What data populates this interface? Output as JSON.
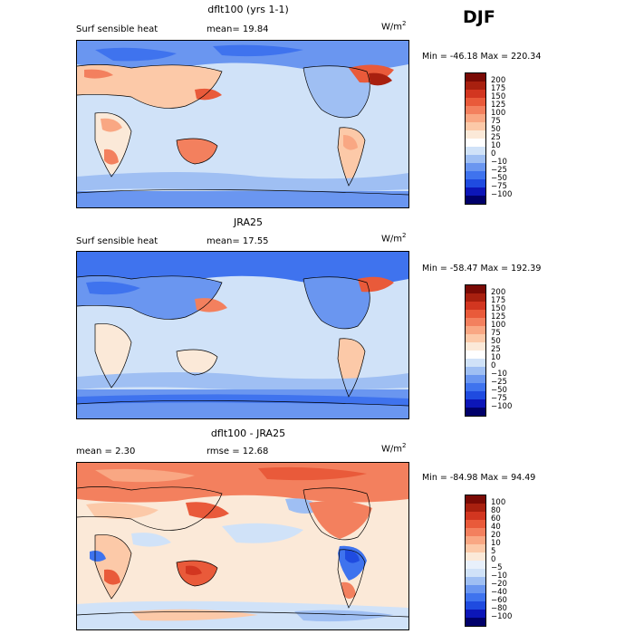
{
  "season": "DJF",
  "units_base": "W/m",
  "units_exp": "2",
  "colors": {
    "abs": [
      "#00006a",
      "#0c16b8",
      "#1f4be0",
      "#3f73ee",
      "#6a96f0",
      "#9fbff3",
      "#d0e2f8",
      "#fbe9d8",
      "#fcc9a8",
      "#f9a783",
      "#f3805e",
      "#e95a3a",
      "#d23620",
      "#a8200f",
      "#7a0a05"
    ],
    "diff": [
      "#00006a",
      "#0c16b8",
      "#1f4be0",
      "#3f73ee",
      "#6a96f0",
      "#9fbff3",
      "#d0e2f8",
      "#e8f0fb",
      "#fbe9d8",
      "#fcc9a8",
      "#f9a783",
      "#f3805e",
      "#e95a3a",
      "#d23620",
      "#a8200f",
      "#7a0a05"
    ]
  },
  "panels": [
    {
      "title": "dflt100 (yrs 1-1)",
      "label_left": "Surf sensible heat",
      "label_mid": "mean=  19.84",
      "minmax": "Min = -46.18  Max = 220.34",
      "colorbar_labels": [
        "200",
        "175",
        "150",
        "125",
        "100",
        "75",
        "50",
        "25",
        "10",
        "0",
        "−10",
        "−25",
        "−50",
        "−75",
        "−100"
      ]
    },
    {
      "title": "JRA25",
      "label_left": "Surf sensible heat",
      "label_mid": "mean=  17.55",
      "minmax": "Min = -58.47  Max = 192.39",
      "colorbar_labels": [
        "200",
        "175",
        "150",
        "125",
        "100",
        "75",
        "50",
        "25",
        "10",
        "0",
        "−10",
        "−25",
        "−50",
        "−75",
        "−100"
      ]
    },
    {
      "title": "dflt100 - JRA25",
      "label_left": "mean =    2.30",
      "label_mid": "rmse =   12.68",
      "minmax": "Min = -84.98  Max =  94.49",
      "colorbar_labels": [
        "100",
        "80",
        "60",
        "40",
        "20",
        "10",
        "5",
        "0",
        "−5",
        "−10",
        "−20",
        "−40",
        "−60",
        "−80",
        "−100"
      ]
    }
  ]
}
